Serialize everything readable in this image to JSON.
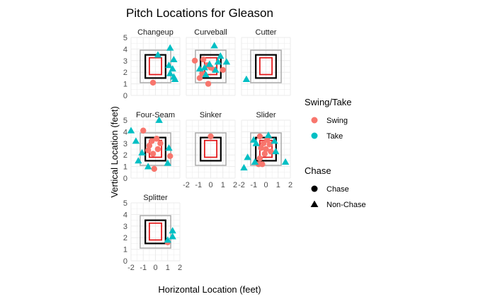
{
  "chart_data": {
    "type": "scatter",
    "title": "Pitch Locations for Gleason",
    "xlabel": "Horizontal Location (feet)",
    "ylabel": "Vertical Location (feet)",
    "xlim": [
      -2,
      2
    ],
    "ylim": [
      0,
      5
    ],
    "x_ticks": [
      -2,
      -1,
      0,
      1,
      2
    ],
    "y_ticks": [
      0,
      1,
      2,
      3,
      4,
      5
    ],
    "grid": true,
    "colors": {
      "swing": "#F8766D",
      "take": "#00BFC4",
      "zone_inner": "#E41A1C",
      "zone_main": "#000000",
      "zone_outer": "#AAAAAA",
      "grid": "#EBEBEB",
      "text": "#4D4D4D"
    },
    "zones": {
      "outer": {
        "x": [
          -1.25,
          1.25
        ],
        "y": [
          1.1,
          3.9
        ]
      },
      "main": {
        "x": [
          -0.83,
          0.83
        ],
        "y": [
          1.5,
          3.5
        ]
      },
      "inner": {
        "x": [
          -0.5,
          0.5
        ],
        "y": [
          1.8,
          3.25
        ]
      }
    },
    "legend": {
      "position": "right",
      "color_title": "Swing/Take",
      "color_items": [
        {
          "label": "Swing",
          "key": "swing"
        },
        {
          "label": "Take",
          "key": "take"
        }
      ],
      "shape_title": "Chase",
      "shape_items": [
        {
          "label": "Chase",
          "shape": "circle"
        },
        {
          "label": "Non-Chase",
          "shape": "triangle"
        }
      ]
    },
    "panels": [
      {
        "name": "Changeup",
        "points": [
          {
            "x": -0.2,
            "y": 1.1,
            "decision": "swing",
            "chase": true
          },
          {
            "x": 0.2,
            "y": 3.5,
            "decision": "take",
            "chase": false
          },
          {
            "x": 1.2,
            "y": 4.1,
            "decision": "take",
            "chase": false
          },
          {
            "x": 1.5,
            "y": 3.1,
            "decision": "take",
            "chase": false
          },
          {
            "x": 1.1,
            "y": 2.6,
            "decision": "take",
            "chase": false
          },
          {
            "x": 1.4,
            "y": 2.3,
            "decision": "take",
            "chase": false
          },
          {
            "x": 1.2,
            "y": 1.9,
            "decision": "take",
            "chase": false
          },
          {
            "x": 1.5,
            "y": 1.6,
            "decision": "take",
            "chase": false
          },
          {
            "x": 1.6,
            "y": 1.4,
            "decision": "take",
            "chase": false
          }
        ]
      },
      {
        "name": "Curveball",
        "points": [
          {
            "x": -1.3,
            "y": 3.0,
            "decision": "swing",
            "chase": true
          },
          {
            "x": -0.6,
            "y": 3.1,
            "decision": "swing",
            "chase": true
          },
          {
            "x": -0.3,
            "y": 2.6,
            "decision": "swing",
            "chase": true
          },
          {
            "x": 0.0,
            "y": 2.4,
            "decision": "swing",
            "chase": true
          },
          {
            "x": 0.3,
            "y": 2.2,
            "decision": "swing",
            "chase": true
          },
          {
            "x": -0.7,
            "y": 1.9,
            "decision": "swing",
            "chase": true
          },
          {
            "x": -0.9,
            "y": 1.5,
            "decision": "swing",
            "chase": true
          },
          {
            "x": 1.0,
            "y": 2.2,
            "decision": "swing",
            "chase": true
          },
          {
            "x": -0.2,
            "y": 1.0,
            "decision": "swing",
            "chase": true
          },
          {
            "x": 0.3,
            "y": 4.3,
            "decision": "take",
            "chase": false
          },
          {
            "x": 0.8,
            "y": 3.4,
            "decision": "take",
            "chase": false
          },
          {
            "x": 1.3,
            "y": 2.9,
            "decision": "take",
            "chase": false
          },
          {
            "x": 0.6,
            "y": 2.9,
            "decision": "take",
            "chase": false
          },
          {
            "x": -0.1,
            "y": 2.7,
            "decision": "take",
            "chase": false
          },
          {
            "x": -0.5,
            "y": 2.4,
            "decision": "take",
            "chase": false
          },
          {
            "x": -0.9,
            "y": 2.3,
            "decision": "take",
            "chase": false
          },
          {
            "x": 0.4,
            "y": 2.2,
            "decision": "take",
            "chase": false
          },
          {
            "x": -0.4,
            "y": 1.8,
            "decision": "take",
            "chase": false
          }
        ]
      },
      {
        "name": "Cutter",
        "points": [
          {
            "x": -1.6,
            "y": 1.4,
            "decision": "take",
            "chase": false
          }
        ]
      },
      {
        "name": "Four-Seam",
        "points": [
          {
            "x": -1.0,
            "y": 4.1,
            "decision": "swing",
            "chase": true
          },
          {
            "x": -0.3,
            "y": 3.2,
            "decision": "swing",
            "chase": true
          },
          {
            "x": 0.1,
            "y": 3.4,
            "decision": "swing",
            "chase": true
          },
          {
            "x": 0.4,
            "y": 3.0,
            "decision": "swing",
            "chase": true
          },
          {
            "x": -0.5,
            "y": 2.8,
            "decision": "swing",
            "chase": true
          },
          {
            "x": 0.2,
            "y": 2.5,
            "decision": "swing",
            "chase": true
          },
          {
            "x": -0.6,
            "y": 2.4,
            "decision": "swing",
            "chase": true
          },
          {
            "x": -0.2,
            "y": 2.1,
            "decision": "swing",
            "chase": true
          },
          {
            "x": 1.2,
            "y": 1.9,
            "decision": "swing",
            "chase": true
          },
          {
            "x": -0.1,
            "y": 0.8,
            "decision": "swing",
            "chase": true
          },
          {
            "x": 0.3,
            "y": 5.0,
            "decision": "take",
            "chase": false
          },
          {
            "x": -2.0,
            "y": 4.1,
            "decision": "take",
            "chase": false
          },
          {
            "x": -1.6,
            "y": 3.2,
            "decision": "take",
            "chase": false
          },
          {
            "x": -1.1,
            "y": 2.2,
            "decision": "take",
            "chase": false
          },
          {
            "x": 1.1,
            "y": 2.6,
            "decision": "take",
            "chase": false
          },
          {
            "x": -1.4,
            "y": 1.5,
            "decision": "take",
            "chase": false
          },
          {
            "x": -0.6,
            "y": 1.0,
            "decision": "take",
            "chase": false
          },
          {
            "x": 1.0,
            "y": 1.3,
            "decision": "take",
            "chase": false
          }
        ]
      },
      {
        "name": "Sinker",
        "points": [
          {
            "x": 0.0,
            "y": 3.6,
            "decision": "swing",
            "chase": true
          }
        ]
      },
      {
        "name": "Slider",
        "points": [
          {
            "x": -0.5,
            "y": 3.6,
            "decision": "swing",
            "chase": true
          },
          {
            "x": 0.1,
            "y": 3.3,
            "decision": "swing",
            "chase": true
          },
          {
            "x": -0.2,
            "y": 3.0,
            "decision": "swing",
            "chase": true
          },
          {
            "x": 0.3,
            "y": 2.9,
            "decision": "swing",
            "chase": true
          },
          {
            "x": -0.4,
            "y": 2.6,
            "decision": "swing",
            "chase": true
          },
          {
            "x": 0.0,
            "y": 2.5,
            "decision": "swing",
            "chase": true
          },
          {
            "x": 0.4,
            "y": 2.3,
            "decision": "swing",
            "chase": true
          },
          {
            "x": -0.1,
            "y": 2.1,
            "decision": "swing",
            "chase": true
          },
          {
            "x": -0.5,
            "y": 1.7,
            "decision": "swing",
            "chase": true
          },
          {
            "x": -0.3,
            "y": 1.2,
            "decision": "swing",
            "chase": true
          },
          {
            "x": -0.6,
            "y": 1.2,
            "decision": "swing",
            "chase": true
          },
          {
            "x": 0.2,
            "y": 3.7,
            "decision": "take",
            "chase": false
          },
          {
            "x": -1.0,
            "y": 3.3,
            "decision": "take",
            "chase": false
          },
          {
            "x": -0.8,
            "y": 3.0,
            "decision": "take",
            "chase": false
          },
          {
            "x": 0.7,
            "y": 3.2,
            "decision": "take",
            "chase": false
          },
          {
            "x": -1.5,
            "y": 1.8,
            "decision": "take",
            "chase": false
          },
          {
            "x": -0.9,
            "y": 1.4,
            "decision": "take",
            "chase": false
          },
          {
            "x": -1.8,
            "y": 0.9,
            "decision": "take",
            "chase": false
          },
          {
            "x": 0.8,
            "y": 2.3,
            "decision": "take",
            "chase": false
          },
          {
            "x": 1.6,
            "y": 1.4,
            "decision": "take",
            "chase": false
          }
        ]
      },
      {
        "name": "Splitter",
        "points": [
          {
            "x": 1.0,
            "y": 1.6,
            "decision": "swing",
            "chase": true
          },
          {
            "x": 1.4,
            "y": 2.6,
            "decision": "take",
            "chase": false
          },
          {
            "x": 1.4,
            "y": 2.1,
            "decision": "take",
            "chase": false
          },
          {
            "x": 1.0,
            "y": 1.8,
            "decision": "take",
            "chase": false
          }
        ]
      }
    ]
  }
}
